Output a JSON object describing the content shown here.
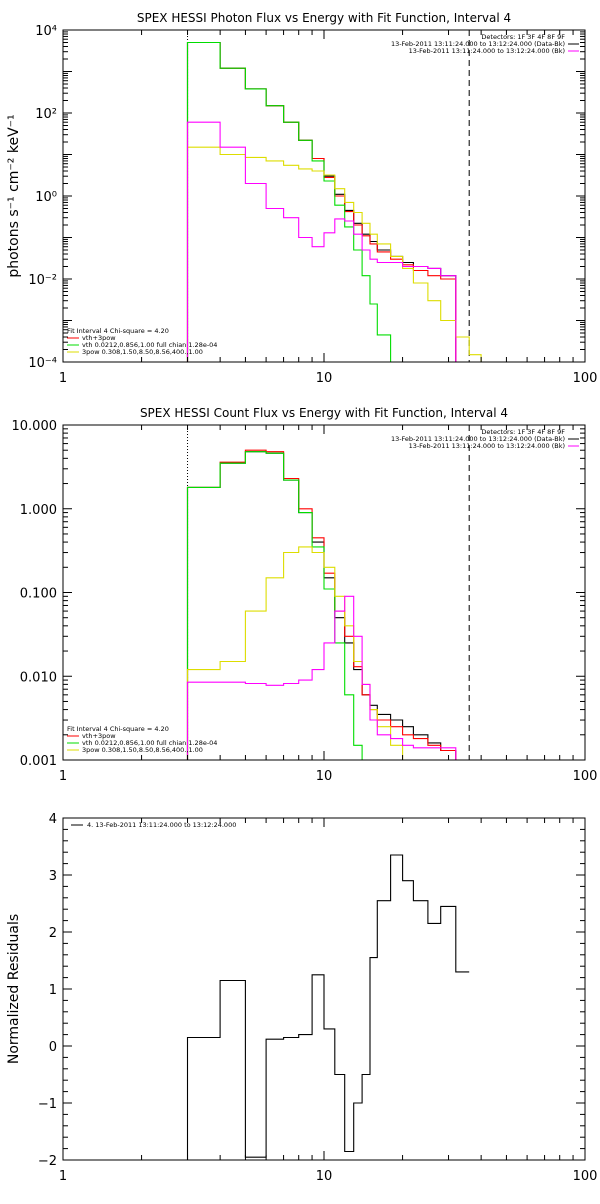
{
  "chart_data": [
    {
      "type": "line",
      "title": "SPEX HESSI Photon Flux vs Energy with Fit Function, Interval 4",
      "ylabel": "photons s⁻¹ cm⁻² keV⁻¹",
      "xlabel": "",
      "xscale": "log",
      "yscale": "log",
      "xlim": [
        1,
        100
      ],
      "ylim": [
        0.0001,
        10000
      ],
      "xticks": [
        1,
        10,
        100
      ],
      "xtick_labels": [
        "1",
        "10",
        "100"
      ],
      "yticks": [
        0.0001,
        0.01,
        1,
        100,
        10000
      ],
      "ytick_labels": [
        "10⁻⁴",
        "10⁻²",
        "10⁰",
        "10²",
        "10⁴"
      ],
      "vlines": [
        {
          "x": 3,
          "style": "dotted"
        },
        {
          "x": 36,
          "style": "dashed"
        }
      ],
      "bin_edges": [
        3,
        4,
        5,
        6,
        7,
        8,
        9,
        10,
        11,
        12,
        13,
        14,
        15,
        16,
        18,
        20,
        22,
        25,
        28,
        32,
        36,
        40,
        45
      ],
      "legend_top": {
        "lines": [
          {
            "text": "Detectors: 1F 3F 4F 8F 9F",
            "color": ""
          },
          {
            "text": "13-Feb-2011 13:11:24.000 to 13:12:24.000 (Data-Bk)",
            "color": "#000000"
          },
          {
            "text": "13-Feb-2011 13:11:24.000 to 13:12:24.000 (Bk)",
            "color": "#ff00ff"
          }
        ]
      },
      "legend_bottom": {
        "header": "Fit Interval  4    Chi-square = 4.20",
        "lines": [
          {
            "text": "vth+3pow",
            "color": "#ff0000"
          },
          {
            "text": "vth 0.0212,0.856,1.00  full chian 1.28e-04",
            "color": "#00dd00"
          },
          {
            "text": "3pow 0.308,1.50,8.50,8.56,400.,1.00",
            "color": "#dddd00"
          }
        ]
      },
      "series": [
        {
          "color": "#000000",
          "values": [
            5000,
            1200,
            380,
            150,
            60,
            22,
            8,
            3,
            1.1,
            0.45,
            0.22,
            0.12,
            0.08,
            0.05,
            0.035,
            0.025,
            0.02,
            0.018,
            0.012,
            0.0001,
            null,
            null
          ]
        },
        {
          "color": "#ff0000",
          "values": [
            5000,
            1200,
            380,
            150,
            60,
            22,
            8,
            2.8,
            1.0,
            0.42,
            0.2,
            0.11,
            0.07,
            0.045,
            0.03,
            0.022,
            0.016,
            0.012,
            0.01,
            0.0001,
            null,
            null
          ]
        },
        {
          "color": "#00dd00",
          "values": [
            5000,
            1200,
            380,
            150,
            60,
            22,
            7,
            2.3,
            0.6,
            0.18,
            0.05,
            0.012,
            0.0025,
            0.00045,
            0.0001,
            null,
            null,
            null,
            null,
            null,
            null,
            null
          ]
        },
        {
          "color": "#dddd00",
          "values": [
            15,
            10,
            8.5,
            7,
            5.5,
            4.5,
            4,
            3.2,
            1.5,
            0.7,
            0.4,
            0.22,
            0.12,
            0.07,
            0.035,
            0.018,
            0.008,
            0.003,
            0.001,
            0.0004,
            0.00015,
            0.0001
          ]
        },
        {
          "color": "#ff00ff",
          "values": [
            60,
            15,
            2,
            0.5,
            0.3,
            0.1,
            0.06,
            0.13,
            0.28,
            0.25,
            0.12,
            0.05,
            0.03,
            0.025,
            0.025,
            0.02,
            0.02,
            0.018,
            0.012,
            0.0001,
            null,
            null
          ]
        }
      ]
    },
    {
      "type": "line",
      "title": "SPEX HESSI Count Flux vs Energy with Fit Function, Interval 4",
      "ylabel": "",
      "xlabel": "",
      "xscale": "log",
      "yscale": "log",
      "xlim": [
        1,
        100
      ],
      "ylim": [
        0.001,
        10
      ],
      "xticks": [
        1,
        10,
        100
      ],
      "xtick_labels": [
        "1",
        "10",
        "100"
      ],
      "yticks": [
        0.001,
        0.01,
        0.1,
        1,
        10
      ],
      "ytick_labels": [
        "0.001",
        "0.010",
        "0.100",
        "1.000",
        "10.000"
      ],
      "vlines": [
        {
          "x": 3,
          "style": "dotted"
        },
        {
          "x": 36,
          "style": "dashed"
        }
      ],
      "bin_edges": [
        3,
        4,
        5,
        6,
        7,
        8,
        9,
        10,
        11,
        12,
        13,
        14,
        15,
        16,
        18,
        20,
        22,
        25,
        28,
        32,
        36
      ],
      "legend_top": {
        "lines": [
          {
            "text": "Detectors: 1F 3F 4F 8F 9F",
            "color": ""
          },
          {
            "text": "13-Feb-2011 13:11:24.000 to 13:12:24.000 (Data-Bk)",
            "color": "#000000"
          },
          {
            "text": "13-Feb-2011 13:11:24.000 to 13:12:24.000 (Bk)",
            "color": "#ff00ff"
          }
        ]
      },
      "legend_bottom": {
        "header": "Fit Interval  4    Chi-square = 4.20",
        "lines": [
          {
            "text": "vth+3pow",
            "color": "#ff0000"
          },
          {
            "text": "vth 0.0212,0.856,1.00  full chian 1.28e-04",
            "color": "#00dd00"
          },
          {
            "text": "3pow 0.308,1.50,8.50,8.56,400.,1.00",
            "color": "#dddd00"
          }
        ]
      },
      "series": [
        {
          "color": "#000000",
          "values": [
            1.8,
            3.5,
            4.8,
            4.6,
            2.2,
            0.9,
            0.4,
            0.15,
            0.05,
            0.025,
            0.012,
            0.006,
            0.0045,
            0.0035,
            0.003,
            0.0025,
            0.002,
            0.0016,
            0.0013,
            0.001
          ]
        },
        {
          "color": "#ff0000",
          "values": [
            1.8,
            3.6,
            5.0,
            4.8,
            2.3,
            1.0,
            0.45,
            0.17,
            0.06,
            0.03,
            0.013,
            0.006,
            0.004,
            0.003,
            0.0025,
            0.002,
            0.0018,
            0.0015,
            0.0013,
            0.001
          ]
        },
        {
          "color": "#00dd00",
          "values": [
            1.8,
            3.5,
            4.8,
            4.6,
            2.2,
            0.9,
            0.35,
            0.11,
            0.025,
            0.006,
            0.0015,
            0.0008,
            null,
            null,
            null,
            null,
            null,
            null,
            null,
            null
          ]
        },
        {
          "color": "#dddd00",
          "values": [
            0.012,
            0.015,
            0.06,
            0.15,
            0.3,
            0.35,
            0.3,
            0.2,
            0.09,
            0.04,
            0.015,
            0.008,
            0.004,
            0.0025,
            0.0015,
            0.001,
            0.0008,
            null,
            null,
            null
          ]
        },
        {
          "color": "#ff00ff",
          "values": [
            0.0085,
            0.0085,
            0.0082,
            0.0078,
            0.0082,
            0.009,
            0.012,
            0.025,
            0.06,
            0.09,
            0.03,
            0.008,
            0.003,
            0.002,
            0.0018,
            0.0015,
            0.0014,
            0.0014,
            0.0014,
            0.001
          ]
        }
      ]
    },
    {
      "type": "line",
      "title": "",
      "ylabel": "Normalized Residuals",
      "xlabel": "",
      "xscale": "log",
      "yscale": "linear",
      "xlim": [
        1,
        100
      ],
      "ylim": [
        -2,
        4
      ],
      "xticks": [
        1,
        10,
        100
      ],
      "xtick_labels": [
        "1",
        "10",
        "100"
      ],
      "yticks": [
        -2,
        -1,
        0,
        1,
        2,
        3,
        4
      ],
      "ytick_labels": [
        "−2",
        "−1",
        "0",
        "1",
        "2",
        "3",
        "4"
      ],
      "bin_edges": [
        3,
        4,
        5,
        6,
        7,
        8,
        9,
        10,
        11,
        12,
        13,
        14,
        15,
        16,
        18,
        20,
        22,
        25,
        28,
        32,
        36
      ],
      "legend_top": {
        "lines": [
          {
            "text": "4. 13-Feb-2011 13:11:24.000 to 13:12:24.000",
            "color": "#000000"
          }
        ]
      },
      "series": [
        {
          "color": "#000000",
          "values": [
            0.15,
            1.15,
            -1.95,
            0.12,
            0.15,
            0.2,
            1.25,
            0.3,
            -0.5,
            -1.85,
            -1.0,
            -0.5,
            1.55,
            2.55,
            3.35,
            2.9,
            2.55,
            2.15,
            2.45,
            1.3
          ]
        }
      ]
    }
  ]
}
